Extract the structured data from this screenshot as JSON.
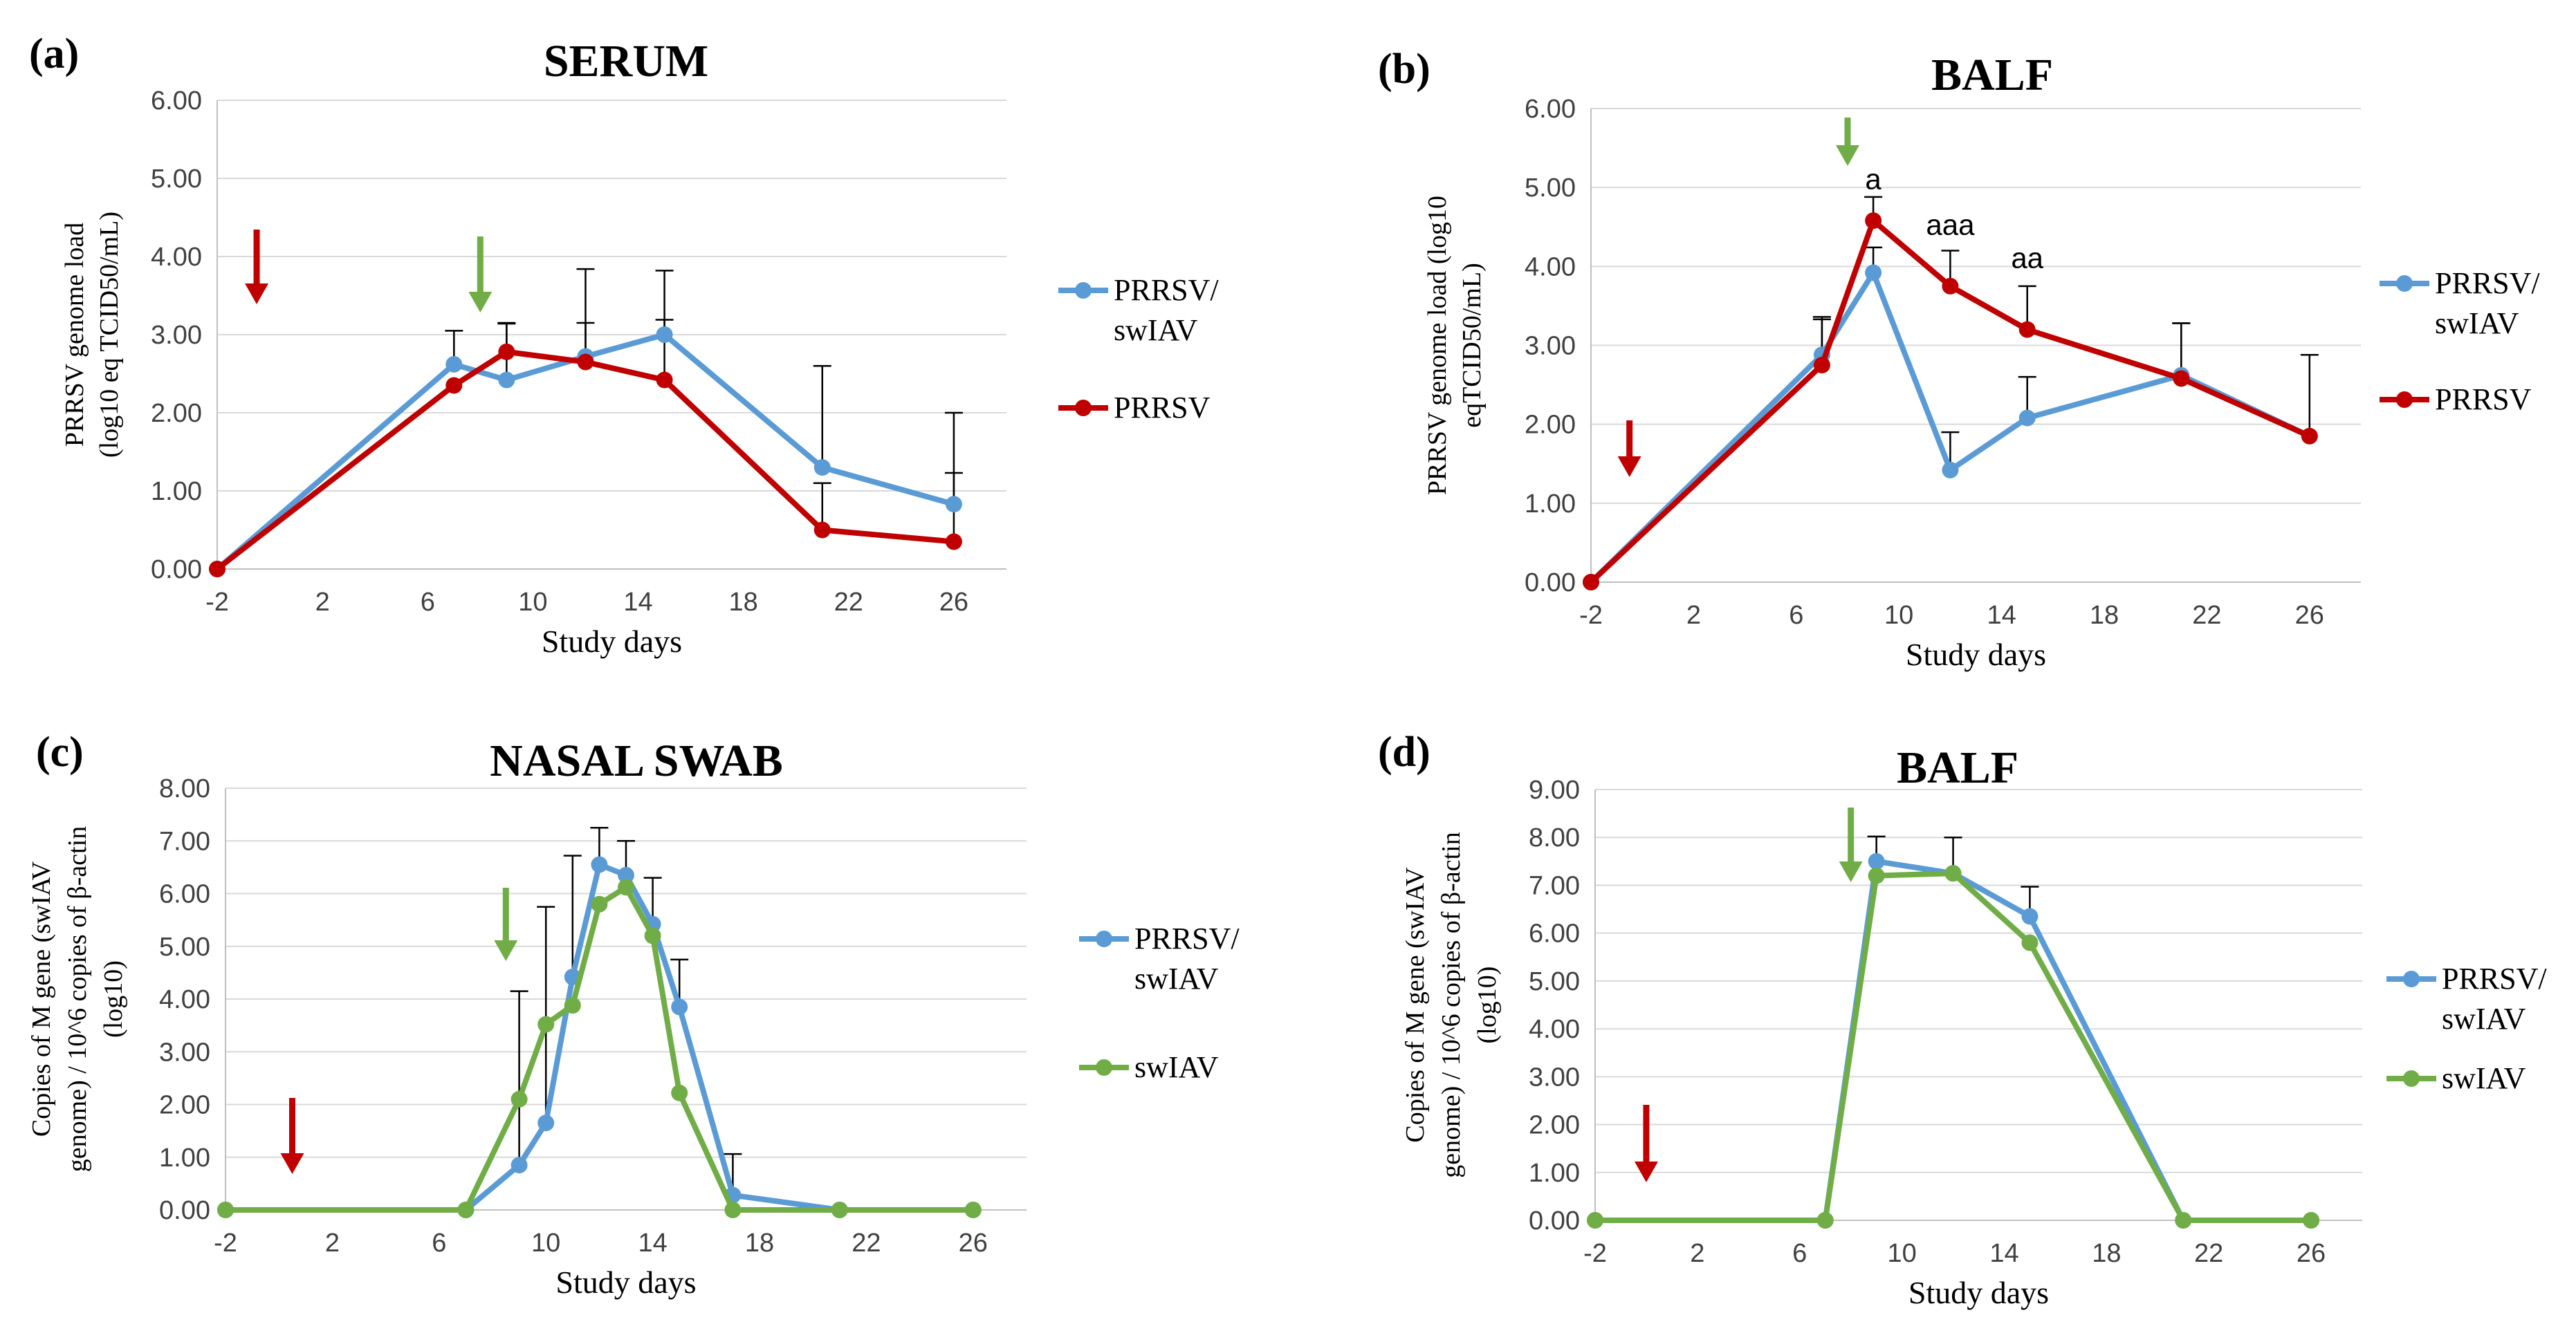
{
  "colors": {
    "blue": "#5b9bd5",
    "red": "#c00000",
    "green": "#70ad47",
    "grid": "#d9d9d9",
    "error": "#000000"
  },
  "chart_data": [
    {
      "panel": "(a)",
      "type": "line",
      "title": "SERUM",
      "xlabel": "Study days",
      "ylabel_lines": [
        "PRRSV genome load",
        "(log10 eq TCID50/mL)"
      ],
      "x_ticks": [
        "-2",
        "2",
        "6",
        "10",
        "14",
        "18",
        "22",
        "26"
      ],
      "y_ticks": [
        "0.00",
        "1.00",
        "2.00",
        "3.00",
        "4.00",
        "5.00",
        "6.00"
      ],
      "xlim": [
        -2,
        28
      ],
      "ylim": [
        0,
        6
      ],
      "series": [
        {
          "name": "PRRSV/ swIAV",
          "legend_lines": [
            "PRRSV/",
            "swIAV"
          ],
          "color": "#5b9bd5",
          "x": [
            -2,
            7,
            9,
            12,
            15,
            21,
            26
          ],
          "y": [
            0,
            2.62,
            2.42,
            2.72,
            3.0,
            1.3,
            0.83
          ],
          "err": [
            0,
            0.43,
            0.72,
            1.12,
            0.82,
            1.3,
            1.17
          ]
        },
        {
          "name": "PRRSV",
          "legend_lines": [
            "PRRSV"
          ],
          "color": "#c00000",
          "x": [
            -2,
            7,
            9,
            12,
            15,
            21,
            26
          ],
          "y": [
            0,
            2.35,
            2.78,
            2.65,
            2.42,
            0.5,
            0.35
          ],
          "err": [
            0,
            0,
            0.37,
            0.5,
            0.77,
            0.6,
            0.88
          ]
        }
      ],
      "arrows": [
        {
          "x": -0.5,
          "color": "red"
        },
        {
          "x": 8,
          "color": "green"
        }
      ],
      "annotations": []
    },
    {
      "panel": "(b)",
      "type": "line",
      "title": "BALF",
      "xlabel": "Study days",
      "ylabel_lines": [
        "PRRSV genome load (log10",
        "eqTCID50/mL)"
      ],
      "x_ticks": [
        "-2",
        "2",
        "6",
        "10",
        "14",
        "18",
        "22",
        "26"
      ],
      "y_ticks": [
        "0.00",
        "1.00",
        "2.00",
        "3.00",
        "4.00",
        "5.00",
        "6.00"
      ],
      "xlim": [
        -2,
        28
      ],
      "ylim": [
        0,
        6
      ],
      "series": [
        {
          "name": "PRRSV/ swIAV",
          "legend_lines": [
            "PRRSV/",
            "swIAV"
          ],
          "color": "#5b9bd5",
          "x": [
            -2,
            7,
            9,
            12,
            15,
            21,
            26
          ],
          "y": [
            0,
            2.88,
            3.92,
            1.42,
            2.08,
            2.62,
            1.85
          ],
          "err": [
            0,
            0.48,
            0.32,
            0.48,
            0.52,
            0.66,
            0
          ]
        },
        {
          "name": "PRRSV",
          "legend_lines": [
            "PRRSV"
          ],
          "color": "#c00000",
          "x": [
            -2,
            7,
            9,
            12,
            15,
            21,
            26
          ],
          "y": [
            0,
            2.75,
            4.58,
            3.75,
            3.2,
            2.58,
            1.85
          ],
          "err": [
            0,
            0.58,
            0.3,
            0.45,
            0.55,
            0.7,
            1.03
          ]
        }
      ],
      "arrows": [
        {
          "x": -0.5,
          "color": "red"
        },
        {
          "x": 8,
          "color": "green"
        }
      ],
      "annotations": [
        {
          "text": "a",
          "x": 9,
          "y": 4.98
        },
        {
          "text": "aaa",
          "x": 12,
          "y": 4.4
        },
        {
          "text": "aa",
          "x": 15,
          "y": 3.98
        }
      ]
    },
    {
      "panel": "(c)",
      "type": "line",
      "title": "NASAL SWAB",
      "xlabel": "Study days",
      "ylabel_lines": [
        "Copies of M gene (swIAV",
        "genome) / 10^6 copies of β-actin",
        "(log10)"
      ],
      "x_ticks": [
        "-2",
        "2",
        "6",
        "10",
        "14",
        "18",
        "22",
        "26"
      ],
      "y_ticks": [
        "0.00",
        "1.00",
        "2.00",
        "3.00",
        "4.00",
        "5.00",
        "6.00",
        "7.00",
        "8.00"
      ],
      "xlim": [
        -2,
        28
      ],
      "ylim": [
        0,
        8
      ],
      "series": [
        {
          "name": "PRRSV/ swIAV",
          "legend_lines": [
            "PRRSV/",
            "swIAV"
          ],
          "color": "#5b9bd5",
          "x": [
            -2,
            7,
            9,
            10,
            11,
            12,
            13,
            14,
            15,
            17,
            21,
            26
          ],
          "y": [
            0,
            0,
            0.85,
            1.65,
            4.42,
            6.55,
            6.35,
            5.42,
            3.85,
            0.28,
            0,
            0
          ],
          "err": [
            0,
            0,
            3.3,
            4.1,
            2.3,
            0.7,
            0.65,
            0.88,
            0.9,
            0.78,
            0,
            0
          ]
        },
        {
          "name": "swIAV",
          "legend_lines": [
            "swIAV"
          ],
          "color": "#70ad47",
          "x": [
            -2,
            7,
            9,
            10,
            11,
            12,
            13,
            14,
            15,
            17,
            21,
            26
          ],
          "y": [
            0,
            0,
            2.1,
            3.52,
            3.88,
            5.8,
            6.12,
            5.2,
            2.22,
            0,
            0,
            0
          ],
          "err": [
            0,
            0,
            0,
            0,
            0,
            0,
            0,
            0,
            0,
            0,
            0,
            0
          ]
        }
      ],
      "arrows": [
        {
          "x": 0.5,
          "color": "red"
        },
        {
          "x": 8.5,
          "color": "green"
        }
      ],
      "annotations": []
    },
    {
      "panel": "(d)",
      "type": "line",
      "title": "BALF",
      "xlabel": "Study days",
      "ylabel_lines": [
        "Copies of M gene (swIAV",
        "genome) / 10^6 copies of β-actin",
        "(log10)"
      ],
      "x_ticks": [
        "-2",
        "2",
        "6",
        "10",
        "14",
        "18",
        "22",
        "26"
      ],
      "y_ticks": [
        "0.00",
        "1.00",
        "2.00",
        "3.00",
        "4.00",
        "5.00",
        "6.00",
        "7.00",
        "8.00",
        "9.00"
      ],
      "xlim": [
        -2,
        28
      ],
      "ylim": [
        0,
        9
      ],
      "series": [
        {
          "name": "PRRSV/ swIAV",
          "legend_lines": [
            "PRRSV/",
            "swIAV"
          ],
          "color": "#5b9bd5",
          "x": [
            -2,
            7,
            9,
            12,
            15,
            21,
            26
          ],
          "y": [
            0,
            0,
            7.5,
            7.25,
            6.35,
            0,
            0
          ],
          "err": [
            0,
            0,
            0.52,
            0.75,
            0.62,
            0,
            0
          ]
        },
        {
          "name": "swIAV",
          "legend_lines": [
            "swIAV"
          ],
          "color": "#70ad47",
          "x": [
            -2,
            7,
            9,
            12,
            15,
            21,
            26
          ],
          "y": [
            0,
            0,
            7.2,
            7.25,
            5.8,
            0,
            0
          ],
          "err": [
            0,
            0,
            0,
            0,
            0,
            0,
            0
          ]
        }
      ],
      "arrows": [
        {
          "x": 0,
          "color": "red"
        },
        {
          "x": 8,
          "color": "green"
        }
      ],
      "annotations": []
    }
  ]
}
